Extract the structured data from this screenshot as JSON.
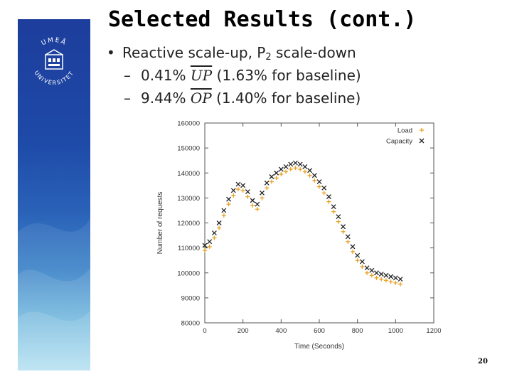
{
  "slide": {
    "title": "Selected Results (cont.)",
    "bullet_main": "Reactive scale-up, P",
    "bullet_main_sub": "2",
    "bullet_main_end": " scale-down",
    "sub1_pct": "0.41%",
    "sub1_metric": "UP",
    "sub1_rest": "(1.63% for baseline)",
    "sub2_pct": "9.44%",
    "sub2_metric": "OP",
    "sub2_rest": "(1.40% for baseline)",
    "page_number": "20",
    "logo_text_top": "UMEÅ",
    "logo_text_bottom": "UNIVERSITET"
  },
  "chart_data": {
    "type": "scatter",
    "xlabel": "Time (Seconds)",
    "ylabel": "Number of requests",
    "xlim": [
      0,
      1200
    ],
    "ylim": [
      80000,
      160000
    ],
    "xticks": [
      "0",
      "200",
      "400",
      "600",
      "800",
      "1000",
      "1200"
    ],
    "yticks": [
      "80000",
      "90000",
      "100000",
      "110000",
      "120000",
      "130000",
      "140000",
      "150000",
      "160000"
    ],
    "grid": false,
    "legend_position": "top-right",
    "series": [
      {
        "name": "Load",
        "marker": "+",
        "color": "#e8a020",
        "x": [
          0,
          25,
          50,
          75,
          100,
          125,
          150,
          175,
          200,
          225,
          250,
          275,
          300,
          325,
          350,
          375,
          400,
          425,
          450,
          475,
          500,
          525,
          550,
          575,
          600,
          625,
          650,
          675,
          700,
          725,
          750,
          775,
          800,
          825,
          850,
          875,
          900,
          925,
          950,
          975,
          1000,
          1025
        ],
        "y": [
          109000,
          110500,
          114000,
          118000,
          123000,
          127500,
          131000,
          133500,
          133000,
          130500,
          127000,
          125500,
          130000,
          134000,
          136500,
          138000,
          139500,
          140500,
          141500,
          142000,
          141500,
          140500,
          139000,
          137000,
          134500,
          132000,
          128500,
          124500,
          120500,
          116500,
          112500,
          108500,
          105000,
          102500,
          100000,
          99000,
          98000,
          97500,
          97000,
          96500,
          96000,
          95500
        ]
      },
      {
        "name": "Capacity",
        "marker": "x",
        "color": "#222222",
        "x": [
          0,
          25,
          50,
          75,
          100,
          125,
          150,
          175,
          200,
          225,
          250,
          275,
          300,
          325,
          350,
          375,
          400,
          425,
          450,
          475,
          500,
          525,
          550,
          575,
          600,
          625,
          650,
          675,
          700,
          725,
          750,
          775,
          800,
          825,
          850,
          875,
          900,
          925,
          950,
          975,
          1000,
          1025
        ],
        "y": [
          111000,
          112500,
          116000,
          120000,
          125000,
          129500,
          133000,
          135500,
          135000,
          132500,
          129000,
          127500,
          132000,
          136000,
          138500,
          140000,
          141500,
          142500,
          143500,
          144000,
          143500,
          142500,
          141000,
          139000,
          136500,
          134000,
          130500,
          126500,
          122500,
          118500,
          114500,
          110500,
          107000,
          104500,
          102000,
          101000,
          100000,
          99500,
          99000,
          98500,
          98000,
          97500
        ]
      }
    ]
  }
}
